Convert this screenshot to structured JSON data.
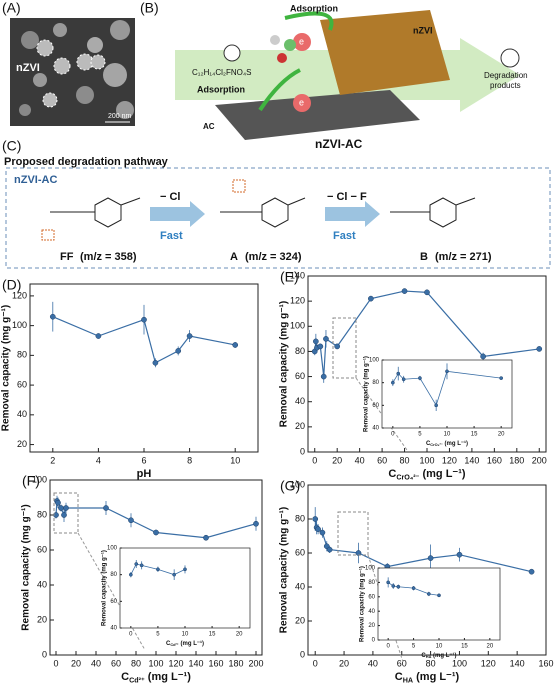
{
  "panel_labels": {
    "a": "(A)",
    "b": "(B)",
    "c": "(C)"
  },
  "sem": {
    "label": "nZVI",
    "scale": "200 nm"
  },
  "schematic": {
    "adsorption_top": "Adsorption",
    "adsorption_bottom": "Adsorption",
    "pollutant": "C₁₂H₁₄Cl₂FNO₄S",
    "nzvi": "nZVI",
    "electron_1": "e",
    "electron_2": "e",
    "products_lines": [
      "Degradation",
      "products"
    ],
    "ac": "AC",
    "composite": "nZVI-AC"
  },
  "pathway": {
    "title": "Proposed degradation pathway",
    "catalyst": "nZVI-AC",
    "step1_loss": "− Cl",
    "step1_rate": "Fast",
    "step2_loss": "− Cl − F",
    "step2_rate": "Fast",
    "compounds": [
      {
        "name": "FF",
        "mz": "(m/z = 358)"
      },
      {
        "name": "A",
        "mz": "(m/z = 324)"
      },
      {
        "name": "B",
        "mz": "(m/z = 271)"
      }
    ]
  },
  "chart_data": [
    {
      "type": "line",
      "panel_label": "(D)",
      "x_label": "pH",
      "y_label": "Removal capacity (mg g⁻¹)",
      "x": [
        2,
        4,
        6,
        6.5,
        7.5,
        8,
        10
      ],
      "series": [
        {
          "color": "#3a6ea5",
          "values": [
            106,
            93,
            104,
            75,
            83,
            93,
            87
          ],
          "errors": [
            10,
            0,
            10,
            3,
            3,
            4,
            2
          ]
        }
      ],
      "xlim": [
        1,
        11
      ],
      "xticks": [
        2,
        4,
        6,
        8,
        10
      ],
      "ylim": [
        15,
        128
      ],
      "yticks": [
        20,
        40,
        60,
        80,
        100,
        120
      ]
    },
    {
      "type": "line",
      "panel_label": "(E)",
      "x_label": {
        "symbol": "C",
        "sub": "CrO₄²⁻",
        "unit": " (mg L⁻¹)"
      },
      "y_label": "Removal capacity (mg g⁻¹)",
      "x": [
        0,
        1,
        2,
        5,
        8,
        10,
        20,
        50,
        80,
        100,
        150,
        200
      ],
      "series": [
        {
          "color": "#3a6ea5",
          "values": [
            80,
            88,
            83,
            84,
            60,
            90,
            84,
            122,
            128,
            127,
            76,
            82
          ],
          "errors": [
            3,
            6,
            3,
            2,
            5,
            7,
            0,
            2,
            2,
            2,
            3,
            2
          ]
        }
      ],
      "xlim": [
        -6,
        206
      ],
      "xticks": [
        0,
        20,
        40,
        60,
        80,
        100,
        120,
        140,
        160,
        180,
        200
      ],
      "ylim": [
        0,
        140
      ],
      "yticks": [
        0,
        20,
        40,
        60,
        80,
        100,
        120,
        140
      ],
      "inset": {
        "x_label": {
          "symbol": "C",
          "sub": "CrO₄²⁻",
          "unit": " (mg L⁻¹)"
        },
        "y_label": "Removal capacity (mg g⁻¹)",
        "xlim": [
          -2,
          22
        ],
        "xticks": [
          0,
          5,
          10,
          15,
          20
        ],
        "ylim": [
          40,
          100
        ],
        "yticks": [
          40,
          60,
          80,
          100
        ]
      }
    },
    {
      "type": "line",
      "panel_label": "(F)",
      "x_label": {
        "symbol": "C",
        "sub": "Cd²⁺",
        "unit": " (mg L⁻¹)"
      },
      "y_label": "Removal capacity (mg g⁻¹)",
      "x": [
        0,
        1,
        2,
        5,
        8,
        10,
        50,
        75,
        100,
        150,
        200
      ],
      "series": [
        {
          "color": "#3a6ea5",
          "values": [
            80,
            88,
            87,
            84,
            80,
            84,
            84,
            77,
            70,
            67,
            75
          ],
          "errors": [
            2,
            3,
            3,
            2,
            4,
            3,
            4,
            4,
            1,
            1,
            4
          ]
        }
      ],
      "xlim": [
        -6,
        206
      ],
      "xticks": [
        0,
        20,
        40,
        60,
        80,
        100,
        120,
        140,
        160,
        180,
        200
      ],
      "ylim": [
        0,
        100
      ],
      "yticks": [
        0,
        20,
        40,
        60,
        80,
        100
      ],
      "inset": {
        "x_label": {
          "symbol": "C",
          "sub": "Cd²⁺",
          "unit": " (mg L⁻¹)"
        },
        "y_label": "Removal capacity (mg g⁻¹)",
        "xlim": [
          -2,
          22
        ],
        "xticks": [
          0,
          5,
          10,
          15,
          20
        ],
        "ylim": [
          40,
          100
        ],
        "yticks": [
          40,
          60,
          80,
          100
        ]
      }
    },
    {
      "type": "line",
      "panel_label": "(G)",
      "x_label": {
        "symbol": "C",
        "sub": "HA",
        "unit": " (mg L⁻¹)"
      },
      "y_label": "Removal capacity (mg g⁻¹)",
      "x": [
        0,
        1,
        2,
        5,
        8,
        10,
        30,
        50,
        80,
        100,
        150
      ],
      "series": [
        {
          "color": "#3a6ea5",
          "values": [
            80,
            75,
            74,
            72,
            64,
            62,
            60,
            52,
            57,
            59,
            49
          ],
          "errors": [
            7,
            4,
            3,
            3,
            3,
            2,
            6,
            2,
            8,
            4,
            1
          ]
        }
      ],
      "xlim": [
        -5,
        160
      ],
      "xticks": [
        0,
        20,
        40,
        60,
        80,
        100,
        120,
        140,
        160
      ],
      "ylim": [
        0,
        100
      ],
      "yticks": [
        0,
        20,
        40,
        60,
        80,
        100
      ],
      "inset": {
        "x_label": {
          "symbol": "C",
          "sub": "HA",
          "unit": " (mg L⁻¹)"
        },
        "y_label": "Removal capacity (mg g⁻¹)",
        "xlim": [
          -2,
          22
        ],
        "xticks": [
          0,
          5,
          10,
          15,
          20
        ],
        "ylim": [
          0,
          100
        ],
        "yticks": [
          0,
          20,
          40,
          60,
          80,
          100
        ]
      }
    }
  ]
}
